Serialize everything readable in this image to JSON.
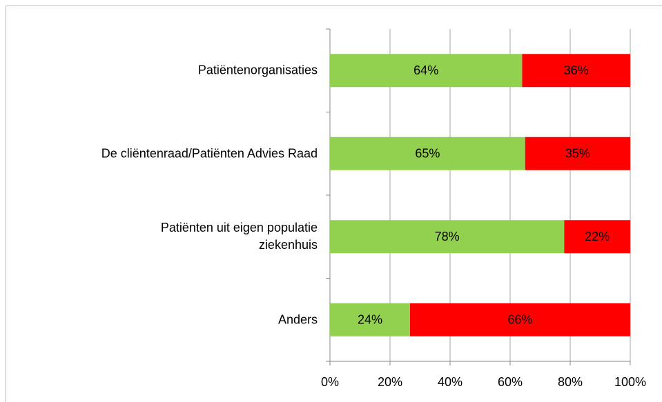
{
  "chart_data": {
    "type": "bar",
    "orientation": "horizontal",
    "stack": "percent",
    "categories": [
      "Patiëntenorganisaties",
      "De cliëntenraad/Patiënten Advies Raad",
      "Patiënten uit eigen populatie\nziekenhuis",
      "Anders"
    ],
    "series": [
      {
        "color": "#92d050",
        "values": [
          64,
          65,
          78,
          24
        ],
        "value_labels": [
          "64%",
          "65%",
          "78%",
          "24%"
        ]
      },
      {
        "color": "#ff0000",
        "values": [
          36,
          35,
          22,
          66
        ],
        "value_labels": [
          "36%",
          "35%",
          "22%",
          "66%"
        ]
      }
    ],
    "xlim": [
      0,
      100
    ],
    "xticks": [
      {
        "value": 0,
        "label": "0%"
      },
      {
        "value": 20,
        "label": "20%"
      },
      {
        "value": 40,
        "label": "40%"
      },
      {
        "value": 60,
        "label": "60%"
      },
      {
        "value": 80,
        "label": "80%"
      },
      {
        "value": 100,
        "label": "100%"
      }
    ],
    "grid": true
  }
}
